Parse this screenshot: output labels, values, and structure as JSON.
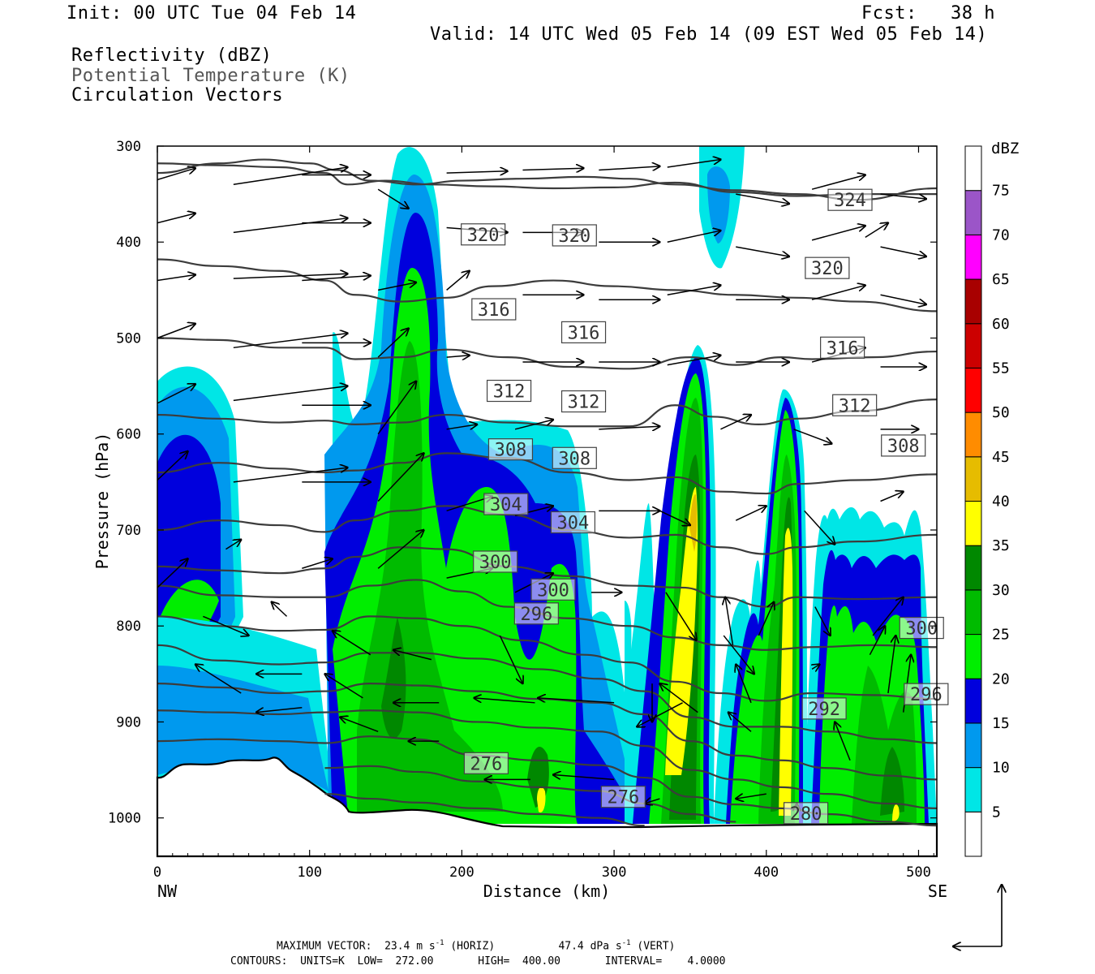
{
  "header": {
    "init": "Init: 00 UTC Tue 04 Feb 14",
    "fcst": "Fcst:   38 h",
    "valid": "Valid: 14 UTC Wed 05 Feb 14 (09 EST Wed 05 Feb 14)",
    "field1": "Reflectivity (dBZ)",
    "field2": "Potential Temperature (K)",
    "field3": "Circulation Vectors"
  },
  "footer": {
    "max_vector_label": "MAXIMUM VECTOR:",
    "horiz_value": "23.4 m s",
    "horiz_exp": "-1",
    "horiz_tag": "(HORIZ)",
    "vert_value": "47.4 dPa s",
    "vert_exp": "-1",
    "vert_tag": "(VERT)",
    "contours": "CONTOURS:  UNITS=K  LOW=  272.00       HIGH=  400.00       INTERVAL=    4.0000"
  },
  "colors": {
    "contour": "#3c3c3c",
    "dbz": [
      "#00e6e6",
      "#0099ee",
      "#0000dd",
      "#00ee00",
      "#00bb00",
      "#008800",
      "#ffff00",
      "#e6bc00",
      "#ff8c00",
      "#ff0000",
      "#cc0000",
      "#a80000",
      "#ff00ff",
      "#9b55c8",
      "#ffffff"
    ]
  },
  "chart_data": {
    "type": "contour",
    "xlabel": "Distance (km)",
    "ylabel": "Pressure (hPa)",
    "xlim": [
      0,
      512
    ],
    "ylim": [
      1040,
      300
    ],
    "x_ticks": [
      0,
      100,
      200,
      300,
      400,
      500
    ],
    "y_ticks": [
      300,
      400,
      500,
      600,
      700,
      800,
      900,
      1000
    ],
    "x_end_labels": [
      "NW",
      "SE"
    ],
    "colorbar": {
      "title": "dBZ",
      "levels": [
        5,
        10,
        15,
        20,
        25,
        30,
        35,
        40,
        45,
        50,
        55,
        60,
        65,
        70,
        75
      ]
    },
    "theta_labels": [
      {
        "value": "324",
        "x": 455,
        "p": 356
      },
      {
        "value": "320",
        "x": 214,
        "p": 392
      },
      {
        "value": "320",
        "x": 274,
        "p": 393
      },
      {
        "value": "320",
        "x": 440,
        "p": 427
      },
      {
        "value": "316",
        "x": 221,
        "p": 470
      },
      {
        "value": "316",
        "x": 280,
        "p": 494
      },
      {
        "value": "316",
        "x": 450,
        "p": 510
      },
      {
        "value": "312",
        "x": 231,
        "p": 555
      },
      {
        "value": "312",
        "x": 280,
        "p": 566
      },
      {
        "value": "312",
        "x": 458,
        "p": 570
      },
      {
        "value": "308",
        "x": 232,
        "p": 616
      },
      {
        "value": "308",
        "x": 274,
        "p": 625
      },
      {
        "value": "308",
        "x": 490,
        "p": 612
      },
      {
        "value": "304",
        "x": 229,
        "p": 673
      },
      {
        "value": "304",
        "x": 273,
        "p": 692
      },
      {
        "value": "300",
        "x": 222,
        "p": 733
      },
      {
        "value": "300",
        "x": 260,
        "p": 762
      },
      {
        "value": "300",
        "x": 502,
        "p": 802
      },
      {
        "value": "296",
        "x": 249,
        "p": 787
      },
      {
        "value": "296",
        "x": 505,
        "p": 871
      },
      {
        "value": "292",
        "x": 438,
        "p": 886
      },
      {
        "value": "276",
        "x": 216,
        "p": 943
      },
      {
        "value": "276",
        "x": 306,
        "p": 978
      },
      {
        "value": "280",
        "x": 426,
        "p": 995
      }
    ]
  }
}
